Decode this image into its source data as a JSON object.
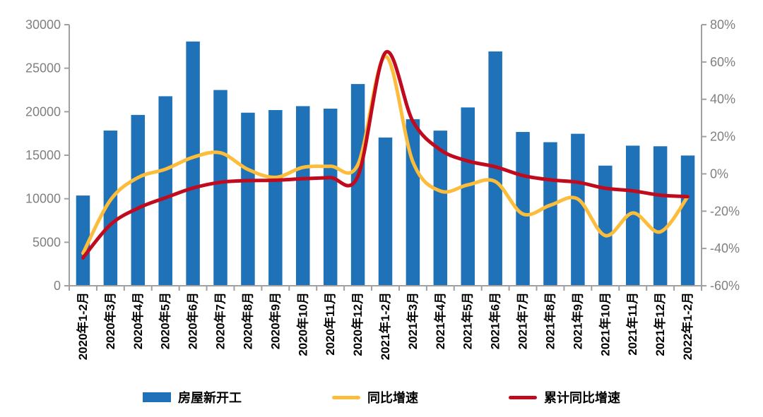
{
  "chart_data": {
    "type": "combo",
    "title": "",
    "grid": false,
    "legend_position": "bottom",
    "categories": [
      "2020年1-2月",
      "2020年3月",
      "2020年4月",
      "2020年5月",
      "2020年6月",
      "2020年7月",
      "2020年8月",
      "2020年9月",
      "2020年10月",
      "2020年11月",
      "2020年12月",
      "2021年1-2月",
      "2021年3月",
      "2021年4月",
      "2021年5月",
      "2021年6月",
      "2021年7月",
      "2021年8月",
      "2021年9月",
      "2021年10月",
      "2021年11月",
      "2021年12月",
      "2022年1-2月"
    ],
    "series": [
      {
        "name": "房屋新开工",
        "type": "bar",
        "axis": "left",
        "color": "#1F72B8",
        "values": [
          10370,
          17833,
          19633,
          21777,
          28068,
          22494,
          19889,
          20192,
          20640,
          20355,
          23182,
          17037,
          19140,
          17828,
          20491,
          26928,
          17673,
          16497,
          17465,
          13805,
          16101,
          16030,
          14967
        ]
      },
      {
        "name": "同比增速",
        "type": "line",
        "axis": "right",
        "color": "#FBBD3B",
        "values": [
          -42.5,
          -14,
          -2,
          2.5,
          8.9,
          11.3,
          2.4,
          -1.9,
          3.5,
          4.1,
          5,
          63,
          6.5,
          -9.2,
          -5.9,
          -4.1,
          -21.5,
          -16.8,
          -13.5,
          -33.1,
          -21,
          -31.1,
          -12.2
        ]
      },
      {
        "name": "累计同比增速",
        "type": "line",
        "axis": "right",
        "color": "#C00A1E",
        "values": [
          -45,
          -27.2,
          -18.4,
          -12.8,
          -7.6,
          -4.5,
          -3.6,
          -3.4,
          -2.6,
          -2,
          -1.2,
          65,
          28.2,
          12.9,
          6.9,
          3.8,
          -0.9,
          -3.2,
          -4.5,
          -7.7,
          -9.1,
          -11.4,
          -12.2
        ]
      }
    ],
    "left_axis": {
      "min": 0,
      "max": 30000,
      "step": 5000,
      "tick_labels": [
        "0",
        "5000",
        "10000",
        "15000",
        "20000",
        "25000",
        "30000"
      ]
    },
    "right_axis": {
      "min": -60,
      "max": 80,
      "step": 20,
      "tick_labels": [
        "-60%",
        "-40%",
        "-20%",
        "0%",
        "20%",
        "40%",
        "60%",
        "80%"
      ]
    }
  },
  "style": {
    "axis_line_color": "#A0A0A0",
    "tick_text_color": "#808080",
    "x_label_color": "#000000",
    "background": "#FFFFFF"
  }
}
